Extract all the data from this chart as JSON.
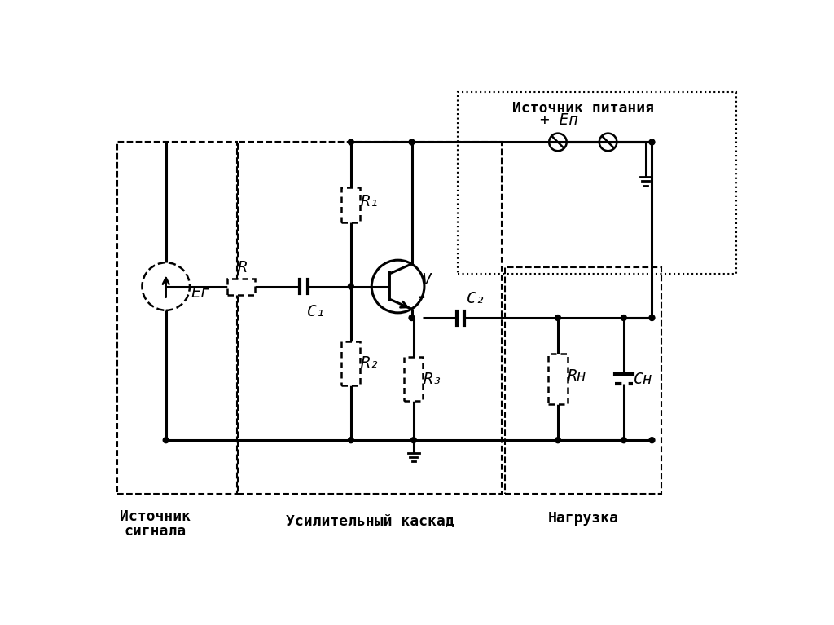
{
  "bg_color": "#ffffff",
  "labels": {
    "R": "R",
    "R1": "R₁",
    "R2": "R₂",
    "R3": "R₃",
    "RH": "Rн",
    "C1": "C₁",
    "C2": "C₂",
    "CH": "Cн",
    "V": "V",
    "EG": "Eг",
    "EP": "+ Eп",
    "minus": "-",
    "source_signal_1": "Источник",
    "source_signal_2": "сигнала",
    "amplifier": "Усилительный каскад",
    "load": "Нагрузка",
    "power_source": "Источник питания"
  }
}
